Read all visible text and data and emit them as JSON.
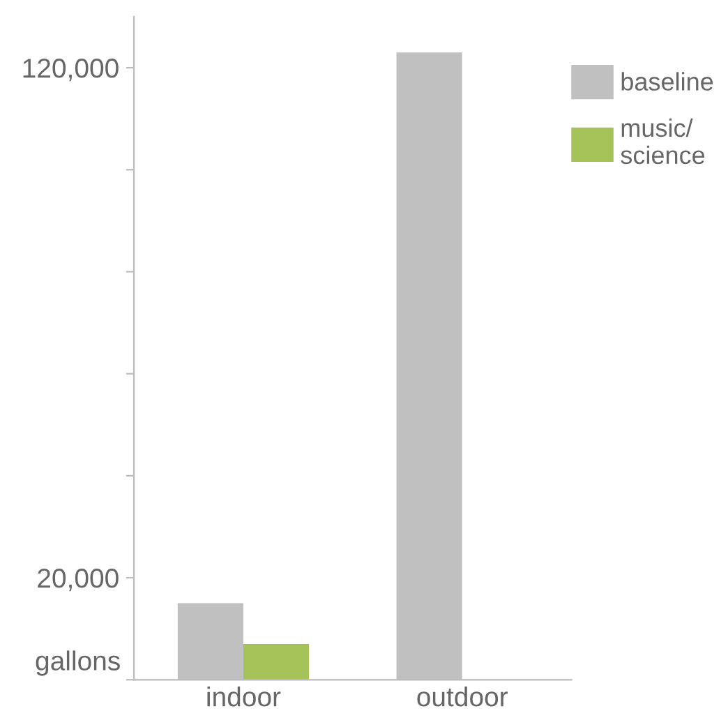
{
  "chart_data": {
    "type": "bar",
    "ylabel": "gallons",
    "categories": [
      "indoor",
      "outdoor"
    ],
    "series": [
      {
        "name": "baseline",
        "color": "#c0c0c0",
        "values": [
          15000,
          123000
        ]
      },
      {
        "name": "music/\nscience",
        "color": "#a6c35a",
        "values": [
          7000,
          0
        ]
      }
    ],
    "ylim": [
      0,
      130000
    ],
    "yticks": [
      {
        "value": 0,
        "label": null
      },
      {
        "value": 20000,
        "label": "20,000"
      },
      {
        "value": 40000,
        "label": null
      },
      {
        "value": 60000,
        "label": null
      },
      {
        "value": 80000,
        "label": null
      },
      {
        "value": 100000,
        "label": null
      },
      {
        "value": 120000,
        "label": "120,000"
      }
    ],
    "grid": false,
    "legend": "top right"
  }
}
